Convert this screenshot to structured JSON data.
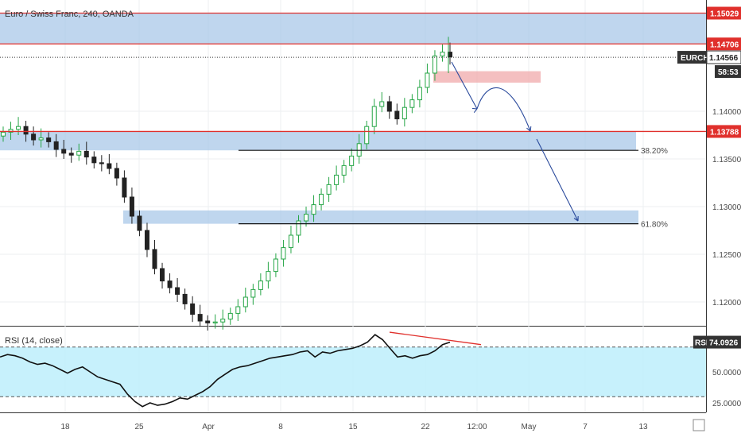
{
  "chart_data": [
    {
      "type": "candlestick",
      "title": "Euro / Swiss Franc, 240, OANDA",
      "symbol": "EURCHF",
      "last_price": "1.14566",
      "countdown": "58:53",
      "y_ticks": [
        "1.12000",
        "1.12500",
        "1.13000",
        "1.13500",
        "1.14000"
      ],
      "x_ticks": [
        "18",
        "25",
        "Apr",
        "8",
        "15",
        "22",
        "12:00",
        "May",
        "7",
        "13"
      ],
      "ylim": [
        1.117,
        1.1528
      ],
      "grid": true,
      "horizontal_levels": [
        {
          "price": 1.15029,
          "label": "1.15029",
          "color": "#e0302c"
        },
        {
          "price": 1.14706,
          "label": "1.14706",
          "color": "#e0302c"
        },
        {
          "price": 1.13788,
          "label": "1.13788",
          "color": "#e0302c"
        }
      ],
      "zones": [
        {
          "from": 1.14706,
          "to": 1.15029,
          "color": "#a9c8e8"
        },
        {
          "from": 1.1359,
          "to": 1.1379,
          "color": "#a9c8e8"
        },
        {
          "from": 1.1282,
          "to": 1.1296,
          "color": "#a9c8e8"
        },
        {
          "from": 1.143,
          "to": 1.1442,
          "color": "#f0a9ab"
        }
      ],
      "fib_levels": [
        {
          "label": "38.20%",
          "price": 1.1359
        },
        {
          "label": "61.80%",
          "price": 1.1282
        }
      ],
      "candles_approx": [
        1.1378,
        1.1381,
        1.1384,
        1.1376,
        1.137,
        1.1372,
        1.1368,
        1.136,
        1.1356,
        1.1354,
        1.1358,
        1.1352,
        1.1346,
        1.1345,
        1.134,
        1.133,
        1.131,
        1.129,
        1.1275,
        1.1255,
        1.1235,
        1.1222,
        1.1215,
        1.1208,
        1.1198,
        1.1187,
        1.118,
        1.1178,
        1.1179,
        1.1182,
        1.1188,
        1.1195,
        1.1205,
        1.1213,
        1.1222,
        1.1232,
        1.1245,
        1.1257,
        1.127,
        1.1285,
        1.1292,
        1.1302,
        1.1313,
        1.1323,
        1.1333,
        1.1343,
        1.1353,
        1.1366,
        1.1384,
        1.1405,
        1.141,
        1.14,
        1.1392,
        1.1404,
        1.1412,
        1.1425,
        1.144,
        1.1458,
        1.1462,
        1.1457
      ]
    },
    {
      "type": "line",
      "title": "RSI (14, close)",
      "label": "RSI",
      "last_value": "74.0926",
      "y_ticks": [
        "50.0000",
        "25.0000"
      ],
      "ylim": [
        15,
        85
      ],
      "bands": [
        30,
        70
      ],
      "values_approx": [
        62,
        64,
        63,
        61,
        58,
        56,
        57,
        55,
        52,
        49,
        52,
        54,
        50,
        46,
        44,
        42,
        40,
        32,
        26,
        22,
        25,
        23,
        24,
        26,
        29,
        28,
        31,
        34,
        38,
        44,
        48,
        52,
        54,
        55,
        57,
        59,
        61,
        62,
        63,
        64,
        66,
        67,
        62,
        66,
        65,
        67,
        68,
        69,
        71,
        74,
        80,
        76,
        69,
        62,
        63,
        61,
        63,
        64,
        67,
        72,
        74
      ]
    }
  ]
}
